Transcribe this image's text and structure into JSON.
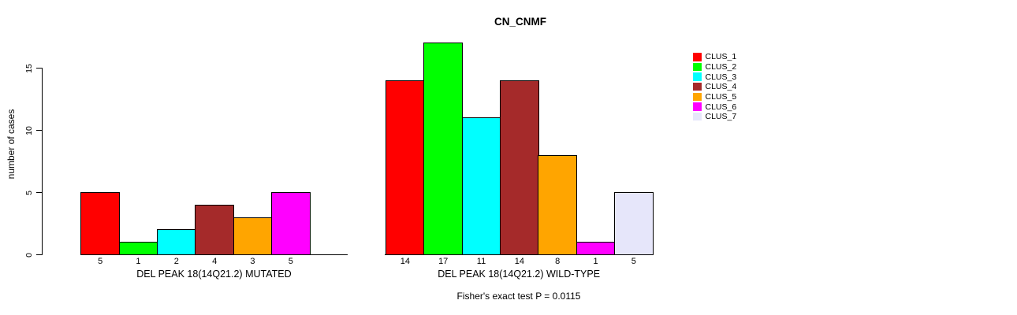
{
  "chart_data": {
    "type": "bar",
    "title": "CN_CNMF",
    "ylabel": "number of cases",
    "footer": "Fisher's exact test P = 0.0115",
    "ylim": [
      0,
      15
    ],
    "yticks": [
      "0",
      "5",
      "10",
      "15"
    ],
    "grid": false,
    "legend_position": "top-right-of-plot",
    "clusters": [
      {
        "name": "CLUS_1",
        "color": "#ff0000"
      },
      {
        "name": "CLUS_2",
        "color": "#00ff00"
      },
      {
        "name": "CLUS_3",
        "color": "#00ffff"
      },
      {
        "name": "CLUS_4",
        "color": "#a52a2a"
      },
      {
        "name": "CLUS_5",
        "color": "#ffa500"
      },
      {
        "name": "CLUS_6",
        "color": "#ff00ff"
      },
      {
        "name": "CLUS_7",
        "color": "#e6e6fa"
      }
    ],
    "groups": [
      {
        "label": "DEL PEAK 18(14Q21.2) MUTATED",
        "values": [
          5,
          1,
          2,
          4,
          3,
          5,
          0
        ],
        "bar_labels": [
          "5",
          "1",
          "2",
          "4",
          "3",
          "5",
          ""
        ]
      },
      {
        "label": "DEL PEAK 18(14Q21.2) WILD-TYPE",
        "values": [
          14,
          17,
          11,
          14,
          8,
          1,
          5
        ],
        "bar_labels": [
          "14",
          "17",
          "11",
          "14",
          "8",
          "1",
          "5"
        ]
      }
    ]
  }
}
